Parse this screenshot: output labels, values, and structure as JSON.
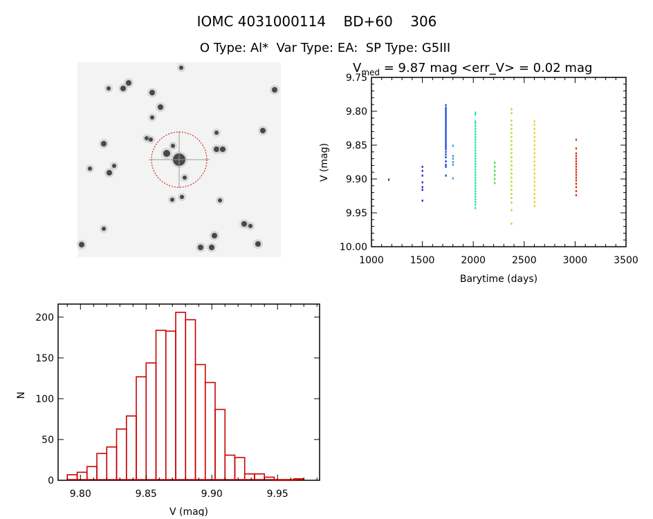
{
  "header": {
    "title_line1": "IOMC 4031000114    BD+60    306",
    "title_line2": "O Type: Al*  Var Type: EA:  SP Type: G5III"
  },
  "finder_image": {
    "description_icon": "star-field-finder-chart",
    "circle_color": "#cc0000"
  },
  "chart_data": [
    {
      "type": "scatter",
      "title_main": "V",
      "title_sub": "med",
      "title_rest": " = 9.87 mag <err_V> = 0.02 mag",
      "xlabel": "Barytime (days)",
      "ylabel": "V (mag)",
      "xlim": [
        1000,
        3500
      ],
      "ylim": [
        9.75,
        10.0
      ],
      "y_inverted": true,
      "xticks": [
        "1000",
        "1500",
        "2000",
        "2500",
        "3000",
        "3500"
      ],
      "yticks": [
        "9.75",
        "9.80",
        "9.85",
        "9.90",
        "9.95",
        "10.00"
      ],
      "grid": false,
      "series": [
        {
          "t": 1170,
          "color": "#5a1a80",
          "v": [
            9.901
          ]
        },
        {
          "t": 1500,
          "color": "#3a20c0",
          "v": [
            9.882,
            9.888,
            9.895,
            9.905,
            9.912,
            9.916,
            9.932
          ]
        },
        {
          "t": 1730,
          "color": "#1040e0",
          "v": [
            9.791,
            9.795,
            9.798,
            9.801,
            9.804,
            9.806,
            9.809,
            9.812,
            9.815,
            9.818,
            9.82,
            9.823,
            9.826,
            9.829,
            9.832,
            9.835,
            9.838,
            9.841,
            9.844,
            9.847,
            9.85,
            9.853,
            9.856,
            9.86,
            9.864,
            9.868,
            9.874,
            9.879,
            9.882,
            9.895
          ]
        },
        {
          "t": 1800,
          "color": "#30a0e0",
          "v": [
            9.851,
            9.866,
            9.87,
            9.875,
            9.879,
            9.899
          ]
        },
        {
          "t": 2020,
          "color": "#20e0a0",
          "v": [
            9.802,
            9.805,
            9.815,
            9.818,
            9.822,
            9.826,
            9.83,
            9.834,
            9.838,
            9.842,
            9.846,
            9.85,
            9.854,
            9.858,
            9.862,
            9.866,
            9.87,
            9.874,
            9.878,
            9.882,
            9.886,
            9.89,
            9.894,
            9.898,
            9.902,
            9.906,
            9.91,
            9.914,
            9.918,
            9.922,
            9.926,
            9.93,
            9.934,
            9.938,
            9.943
          ]
        },
        {
          "t": 2210,
          "color": "#40e040",
          "v": [
            9.876,
            9.882,
            9.888,
            9.894,
            9.9,
            9.906
          ]
        },
        {
          "t": 2375,
          "color": "#a0e030",
          "v": [
            9.797,
            9.803,
            9.814,
            9.82,
            9.826,
            9.832,
            9.838,
            9.844,
            9.85,
            9.856,
            9.862,
            9.868,
            9.874,
            9.88,
            9.886,
            9.892,
            9.898,
            9.904,
            9.91,
            9.916,
            9.922,
            9.928,
            9.935,
            9.946,
            9.966
          ]
        },
        {
          "t": 2600,
          "color": "#f0d010",
          "v": [
            9.815,
            9.82,
            9.826,
            9.832,
            9.838,
            9.844,
            9.85,
            9.856,
            9.862,
            9.868,
            9.874,
            9.88,
            9.886,
            9.892,
            9.898,
            9.904,
            9.91,
            9.916,
            9.922,
            9.928,
            9.934,
            9.94
          ]
        },
        {
          "t": 3010,
          "color": "#e03010",
          "v": [
            9.842,
            9.855,
            9.862,
            9.866,
            9.87,
            9.874,
            9.878,
            9.882,
            9.886,
            9.89,
            9.894,
            9.898,
            9.902,
            9.907,
            9.912,
            9.918,
            9.924
          ]
        }
      ]
    },
    {
      "type": "bar",
      "subtype": "histogram",
      "xlabel": "V (mag)",
      "ylabel": "N",
      "xlim": [
        9.783,
        9.982
      ],
      "ylim": [
        0,
        216
      ],
      "xticks": [
        "9.80",
        "9.85",
        "9.90",
        "9.95"
      ],
      "yticks": [
        "0",
        "50",
        "100",
        "150",
        "200"
      ],
      "bin_start": 9.79,
      "bin_width": 0.0075,
      "values": [
        6,
        9,
        16,
        32,
        40,
        62,
        78,
        126,
        143,
        183,
        182,
        205,
        196,
        141,
        119,
        86,
        30,
        27,
        7,
        7,
        3,
        0,
        0,
        1
      ],
      "color": "#cc0000",
      "grid": false
    }
  ]
}
